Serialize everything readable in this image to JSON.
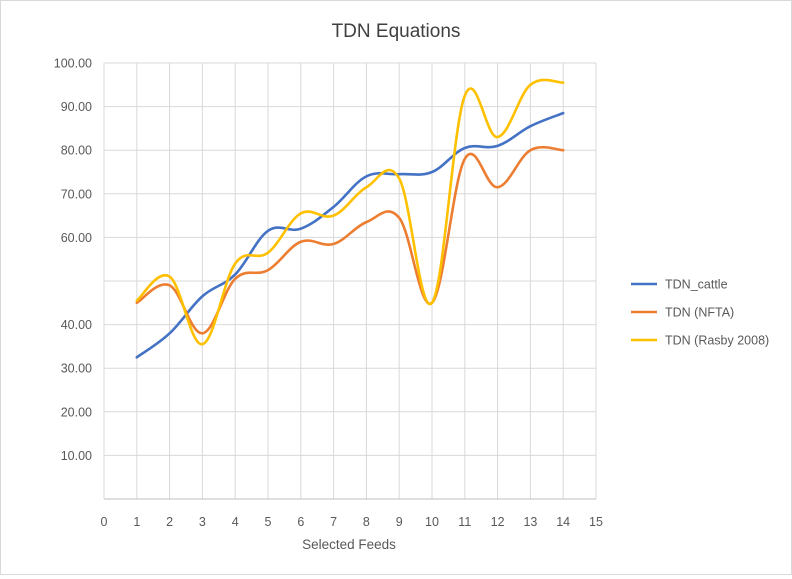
{
  "chart_data": {
    "type": "line",
    "title": "TDN Equations",
    "xlabel": "Selected Feeds",
    "ylabel": "",
    "x_ticks": [
      "0",
      "1",
      "2",
      "3",
      "4",
      "5",
      "6",
      "7",
      "8",
      "9",
      "10",
      "11",
      "12",
      "13",
      "14",
      "15"
    ],
    "y_ticks": [
      "10.00",
      "20.00",
      "30.00",
      "40.00",
      "60.00",
      "70.00",
      "80.00",
      "90.00",
      "100.00"
    ],
    "xlim": [
      0,
      15
    ],
    "ylim": [
      0,
      100
    ],
    "grid": "vertical and horizontal",
    "legend_position": "right",
    "smoothed": true,
    "x": [
      1,
      2,
      3,
      4,
      5,
      6,
      7,
      8,
      9,
      10,
      11,
      12,
      13,
      14
    ],
    "series": [
      {
        "name": "TDN_cattle",
        "color": "#4472C4",
        "values": [
          32.5,
          38.0,
          46.5,
          51.5,
          61.5,
          62.0,
          67.0,
          74.0,
          74.5,
          75.0,
          80.5,
          81.0,
          85.5,
          88.5
        ]
      },
      {
        "name": "TDN (NFTA)",
        "color": "#ED7D31",
        "values": [
          45.0,
          49.0,
          38.0,
          50.5,
          52.5,
          59.0,
          58.5,
          63.5,
          64.5,
          45.0,
          78.0,
          71.5,
          80.0,
          80.0
        ]
      },
      {
        "name": "TDN (Rasby 2008)",
        "color": "#FFC000",
        "values": [
          45.5,
          51.0,
          35.5,
          54.0,
          56.5,
          65.5,
          65.0,
          71.5,
          73.5,
          45.0,
          92.5,
          83.0,
          95.0,
          95.5
        ]
      }
    ]
  }
}
